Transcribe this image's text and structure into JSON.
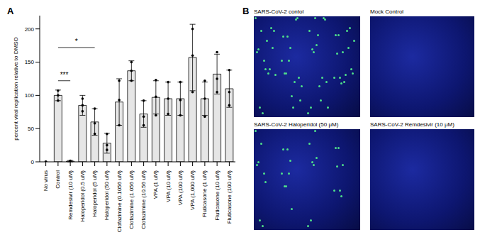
{
  "chart_data": {
    "type": "bar",
    "panel_label": "A",
    "ylabel": "percent viral replication relative to DMSO",
    "categories": [
      "No virus",
      "Control",
      "Remdesivir (10 uM)",
      "Haloperidol (0.5 uM)",
      "Haloperidol (5 uM)",
      "Haloperidol (50 uM)",
      "Clofazimine (0.1056 uM)",
      "Clofazimine (1.056 uM)",
      "Clofazimine (10.56 uM)",
      "VPA (1 uM)",
      "VPA (10 uM)",
      "VPA (100 uM)",
      "VPA (1,000 uM)",
      "Fluticasone (1 uM)",
      "Fluticasone (10 uM)",
      "Fluticasone (100 uM)"
    ],
    "values": [
      0,
      100,
      1,
      85,
      60,
      28,
      90,
      137,
      72,
      97,
      95,
      95,
      157,
      95,
      132,
      110
    ],
    "errors": [
      0,
      8,
      1,
      15,
      20,
      15,
      35,
      15,
      20,
      25,
      25,
      25,
      50,
      25,
      30,
      28
    ],
    "points": [
      [
        0,
        0,
        0
      ],
      [
        92,
        100,
        107
      ],
      [
        0.5,
        1,
        1.5
      ],
      [
        76,
        85,
        95
      ],
      [
        42,
        58,
        80
      ],
      [
        18,
        25,
        42
      ],
      [
        55,
        93,
        122
      ],
      [
        122,
        137,
        150
      ],
      [
        55,
        68,
        92
      ],
      [
        70,
        98,
        123
      ],
      [
        72,
        95,
        120
      ],
      [
        70,
        93,
        120
      ],
      [
        105,
        160,
        200
      ],
      [
        68,
        95,
        122
      ],
      [
        105,
        125,
        165
      ],
      [
        85,
        105,
        138
      ]
    ],
    "color": "#e6e6e6",
    "marker": "circle",
    "ylim": [
      0,
      220
    ],
    "yticks": [
      0,
      50,
      100,
      150,
      200
    ],
    "grid": false,
    "annotations": [
      {
        "label": "***",
        "from": "Control",
        "to": "Remdesivir (10 uM)",
        "y": 122
      },
      {
        "label": "*",
        "from": "Control",
        "to": "Haloperidol (5 uM)",
        "y": 172
      }
    ]
  },
  "panel_b": {
    "panel_label": "B",
    "images": [
      "SARS-CoV-2 contol",
      "Mock Control",
      "SARS-CoV-2 Haloperidol (50 μM)",
      "SARS-CoV-2 Remdesivir (10 μM)"
    ]
  }
}
